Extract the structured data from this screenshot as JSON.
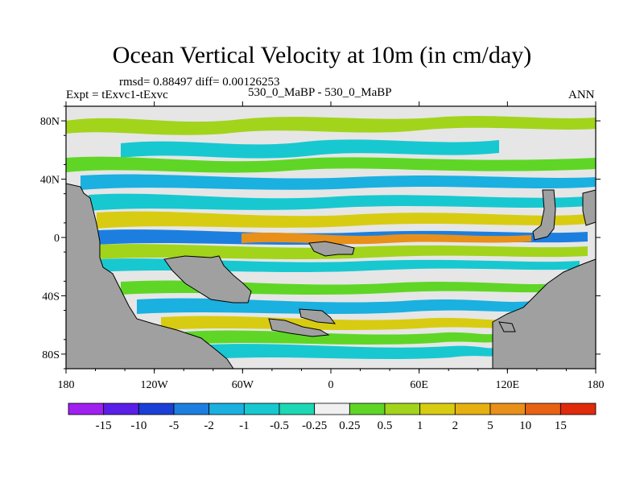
{
  "title": "Ocean Vertical Velocity at 10m (in cm/day)",
  "stats": "rmsd= 0.88497 diff= 0.00126253",
  "expt": "Expt = tExvc1-tExvc",
  "case": "530_0_MaBP - 530_0_MaBP",
  "season": "ANN",
  "lat_labels": [
    "80N",
    "40N",
    "0",
    "40S",
    "80S"
  ],
  "lat_values": [
    80,
    40,
    0,
    -40,
    -80
  ],
  "lon_labels": [
    "180",
    "120W",
    "60W",
    "0",
    "60E",
    "120E",
    "180"
  ],
  "lon_values": [
    -180,
    -120,
    -60,
    0,
    60,
    120,
    180
  ],
  "colorbar": {
    "colors": [
      "#a020f0",
      "#5a1fe6",
      "#1a3fd6",
      "#1c7fe0",
      "#1ab0e0",
      "#18c8d0",
      "#1cd8b4",
      "#f0f0f0",
      "#5fd626",
      "#a2d41c",
      "#d8cc12",
      "#e6b010",
      "#e8901a",
      "#e86214",
      "#e02a0c"
    ],
    "labels": [
      "-15",
      "-10",
      "-5",
      "-2",
      "-1",
      "-0.5",
      "-0.25",
      "0.25",
      "0.5",
      "1",
      "2",
      "5",
      "10",
      "15"
    ]
  },
  "land_color": "#a0a0a0",
  "background_color": "#e6e6e6"
}
